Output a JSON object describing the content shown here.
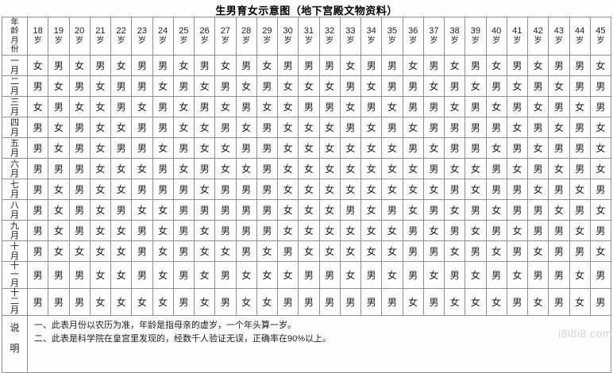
{
  "title": "生男育女示意图（地下宫殿文物资料）",
  "watermark": "i8i8i8.com",
  "table": {
    "corner_label": "年龄月份",
    "age_suffix": "岁",
    "ages": [
      "18",
      "19",
      "20",
      "21",
      "22",
      "23",
      "24",
      "25",
      "26",
      "27",
      "28",
      "29",
      "30",
      "31",
      "32",
      "33",
      "34",
      "35",
      "36",
      "37",
      "38",
      "39",
      "40",
      "41",
      "42",
      "43",
      "44",
      "45"
    ],
    "rows": [
      {
        "month": "一月",
        "cells": [
          "女",
          "男",
          "女",
          "男",
          "女",
          "男",
          "男",
          "女",
          "男",
          "女",
          "男",
          "女",
          "男",
          "男",
          "男",
          "女",
          "男",
          "男",
          "女",
          "男",
          "女",
          "男",
          "女",
          "男",
          "女",
          "男",
          "男",
          "女"
        ]
      },
      {
        "month": "二月",
        "cells": [
          "男",
          "女",
          "男",
          "女",
          "男",
          "男",
          "女",
          "男",
          "女",
          "男",
          "女",
          "男",
          "女",
          "女",
          "女",
          "男",
          "女",
          "男",
          "男",
          "女",
          "男",
          "女",
          "男",
          "女",
          "男",
          "女",
          "男",
          "男"
        ]
      },
      {
        "month": "三月",
        "cells": [
          "女",
          "男",
          "女",
          "女",
          "男",
          "女",
          "男",
          "女",
          "男",
          "女",
          "男",
          "女",
          "女",
          "男",
          "男",
          "女",
          "男",
          "女",
          "男",
          "男",
          "女",
          "男",
          "女",
          "男",
          "女",
          "男",
          "女",
          "男"
        ]
      },
      {
        "month": "四月",
        "cells": [
          "男",
          "女",
          "男",
          "女",
          "女",
          "男",
          "男",
          "女",
          "女",
          "男",
          "女",
          "男",
          "女",
          "女",
          "女",
          "男",
          "女",
          "男",
          "女",
          "男",
          "男",
          "男",
          "男",
          "女",
          "男",
          "女",
          "男",
          "女"
        ]
      },
      {
        "month": "五月",
        "cells": [
          "男",
          "女",
          "男",
          "女",
          "男",
          "男",
          "女",
          "男",
          "女",
          "女",
          "男",
          "男",
          "女",
          "女",
          "女",
          "女",
          "女",
          "女",
          "男",
          "女",
          "男",
          "男",
          "女",
          "男",
          "女",
          "男",
          "男",
          "女"
        ]
      },
      {
        "month": "六月",
        "cells": [
          "男",
          "男",
          "男",
          "女",
          "女",
          "女",
          "男",
          "女",
          "男",
          "女",
          "女",
          "男",
          "女",
          "女",
          "女",
          "女",
          "女",
          "女",
          "女",
          "男",
          "女",
          "女",
          "男",
          "女",
          "男",
          "女",
          "男",
          "女"
        ]
      },
      {
        "month": "七月",
        "cells": [
          "男",
          "女",
          "男",
          "女",
          "女",
          "男",
          "男",
          "男",
          "女",
          "男",
          "男",
          "男",
          "女",
          "女",
          "女",
          "女",
          "女",
          "女",
          "女",
          "女",
          "男",
          "女",
          "男",
          "男",
          "女",
          "男",
          "女",
          "男"
        ]
      },
      {
        "month": "八月",
        "cells": [
          "男",
          "女",
          "男",
          "女",
          "男",
          "女",
          "女",
          "男",
          "男",
          "男",
          "男",
          "男",
          "女",
          "女",
          "女",
          "男",
          "女",
          "男",
          "女",
          "男",
          "女",
          "男",
          "女",
          "男",
          "男",
          "女",
          "男",
          "女"
        ]
      },
      {
        "month": "九月",
        "cells": [
          "男",
          "女",
          "男",
          "女",
          "女",
          "男",
          "女",
          "男",
          "女",
          "男",
          "男",
          "男",
          "女",
          "女",
          "女",
          "女",
          "女",
          "女",
          "男",
          "女",
          "男",
          "女",
          "男",
          "女",
          "男",
          "男",
          "女",
          "男"
        ]
      },
      {
        "month": "十月",
        "cells": [
          "男",
          "女",
          "女",
          "女",
          "女",
          "男",
          "女",
          "男",
          "女",
          "女",
          "男",
          "女",
          "男",
          "女",
          "女",
          "女",
          "女",
          "女",
          "男",
          "男",
          "女",
          "男",
          "女",
          "男",
          "女",
          "男",
          "男",
          "女"
        ]
      },
      {
        "month": "十一月",
        "cells": [
          "男",
          "男",
          "男",
          "女",
          "女",
          "男",
          "女",
          "男",
          "女",
          "男",
          "女",
          "女",
          "女",
          "男",
          "男",
          "女",
          "男",
          "女",
          "男",
          "女",
          "男",
          "女",
          "男",
          "女",
          "男",
          "男",
          "女",
          "男"
        ]
      },
      {
        "month": "十二月",
        "cells": [
          "男",
          "男",
          "男",
          "女",
          "女",
          "女",
          "女",
          "男",
          "女",
          "男",
          "女",
          "女",
          "男",
          "男",
          "男",
          "男",
          "男",
          "男",
          "女",
          "男",
          "女",
          "女",
          "女",
          "男",
          "女",
          "男",
          "女",
          "男"
        ]
      }
    ],
    "notes": {
      "label": "说明",
      "items": [
        "一、此表月份以农历为准，年龄是指母亲的虚岁，一个年头算一岁。",
        "二、此表是科学院在皇宫里发现的，经数千人验证无误，正确率在90%以上。"
      ]
    }
  }
}
